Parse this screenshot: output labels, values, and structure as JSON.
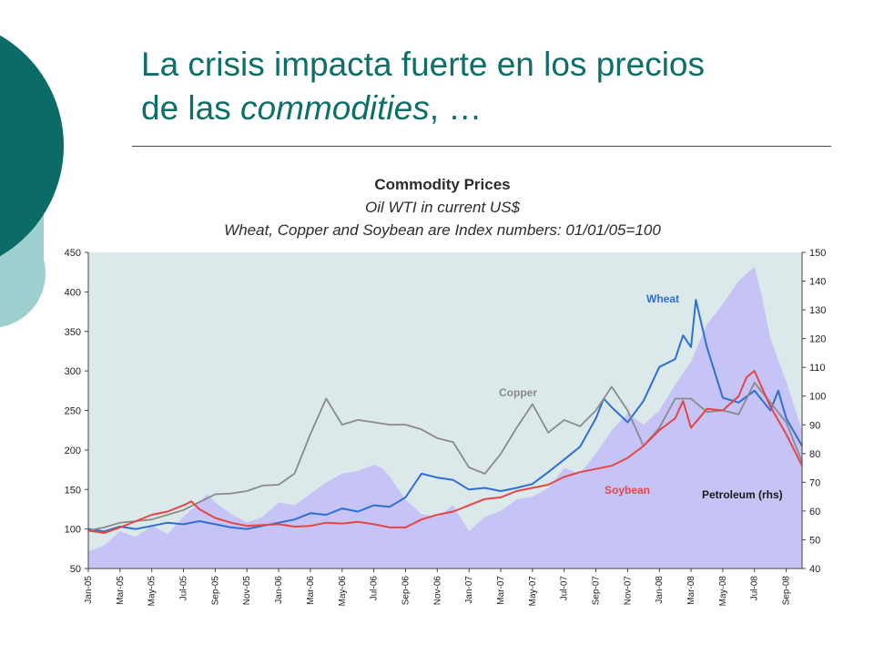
{
  "slide": {
    "title_line1": "La crisis impacta fuerte en los precios",
    "title_line2_prefix": "de las ",
    "title_line2_italic": "commodities",
    "title_line2_suffix": ", …"
  },
  "theme": {
    "title_color": "#0f6e68",
    "dark_teal": "#0b6b66",
    "light_teal": "#9ccfcd"
  },
  "chart_data": {
    "type": "line",
    "title": "Commodity Prices",
    "subtitle1": "Oil WTI in current US$",
    "subtitle2": "Wheat, Copper and Soybean are Index numbers: 01/01/05=100",
    "yleft": {
      "ticks": [
        450,
        400,
        350,
        300,
        250,
        200,
        150,
        100,
        50
      ],
      "lim": [
        50,
        450
      ]
    },
    "yright": {
      "ticks": [
        150,
        140,
        130,
        120,
        110,
        100,
        90,
        80,
        70,
        60,
        50,
        40
      ],
      "lim": [
        40,
        150
      ]
    },
    "x_ticks": [
      "Jan-05",
      "Mar-05",
      "May-05",
      "Jul-05",
      "Sep-05",
      "Nov-05",
      "Jan-06",
      "Mar-06",
      "May-06",
      "Jul-06",
      "Sep-06",
      "Nov-06",
      "Jan-07",
      "Mar-07",
      "May-07",
      "Jul-07",
      "Sep-07",
      "Nov-07",
      "Jan-08",
      "Mar-08",
      "May-08",
      "Jul-08",
      "Sep-08"
    ],
    "x_months": [
      0,
      2,
      4,
      6,
      8,
      10,
      12,
      14,
      16,
      18,
      20,
      22,
      24,
      26,
      28,
      30,
      32,
      34,
      36,
      38,
      40,
      42,
      44
    ],
    "x_range_months": [
      0,
      45
    ],
    "colors": {
      "petroleum": "#c6c3f7",
      "wheat": "#2f6fd3",
      "copper": "#8a8a8a",
      "soybean": "#e64545",
      "plot_bg": "#dce9ea"
    },
    "series": [
      {
        "name": "Petroleum (rhs)",
        "axis": "right",
        "x": [
          0,
          1,
          2,
          3,
          4,
          5,
          6,
          7,
          7.5,
          8,
          9,
          10,
          11,
          12,
          13,
          14,
          15,
          16,
          17,
          18,
          18.5,
          19,
          20,
          21,
          22,
          23,
          24,
          25,
          26,
          27,
          28,
          29,
          30,
          31,
          32,
          33,
          34,
          35,
          36,
          37,
          38,
          39,
          40,
          41,
          42,
          42.5,
          43,
          44,
          45
        ],
        "values": [
          46,
          48,
          53,
          51,
          55,
          52,
          58,
          63,
          66,
          63,
          59,
          56,
          58,
          63,
          62,
          66,
          70,
          73,
          74,
          76,
          75,
          72,
          64,
          59,
          58,
          62,
          53,
          58,
          60,
          64,
          65,
          68,
          75,
          73,
          80,
          88,
          94,
          90,
          95,
          104,
          112,
          125,
          132,
          140,
          145,
          134,
          120,
          105,
          88
        ]
      },
      {
        "name": "Wheat",
        "axis": "left",
        "x": [
          0,
          1,
          2,
          3,
          4,
          5,
          6,
          7,
          8,
          9,
          10,
          11,
          12,
          13,
          14,
          15,
          16,
          17,
          18,
          19,
          20,
          21,
          22,
          23,
          24,
          25,
          26,
          27,
          28,
          29,
          30,
          31,
          32,
          32.5,
          33,
          34,
          35,
          36,
          37,
          37.5,
          38,
          38.3,
          39,
          40,
          41,
          42,
          43,
          43.5,
          44,
          45
        ],
        "values": [
          100,
          97,
          103,
          100,
          104,
          108,
          106,
          110,
          106,
          102,
          100,
          104,
          108,
          112,
          120,
          118,
          126,
          122,
          130,
          128,
          140,
          170,
          165,
          162,
          150,
          152,
          148,
          152,
          157,
          172,
          188,
          204,
          240,
          265,
          254,
          235,
          262,
          305,
          315,
          345,
          330,
          390,
          330,
          266,
          260,
          275,
          250,
          275,
          240,
          205
        ]
      },
      {
        "name": "Copper",
        "axis": "left",
        "x": [
          0,
          1,
          2,
          3,
          4,
          5,
          6,
          7,
          8,
          9,
          10,
          11,
          12,
          13,
          14,
          15,
          16,
          17,
          18,
          19,
          20,
          21,
          22,
          23,
          24,
          25,
          26,
          27,
          28,
          29,
          30,
          31,
          32,
          33,
          34,
          35,
          36,
          37,
          38,
          39,
          40,
          41,
          42,
          43,
          44,
          45
        ],
        "values": [
          98,
          102,
          108,
          110,
          112,
          118,
          124,
          134,
          144,
          145,
          148,
          155,
          156,
          170,
          220,
          265,
          232,
          238,
          235,
          232,
          232,
          226,
          215,
          210,
          178,
          170,
          195,
          228,
          258,
          222,
          238,
          230,
          250,
          280,
          250,
          205,
          228,
          265,
          265,
          248,
          250,
          245,
          285,
          260,
          235,
          185
        ]
      },
      {
        "name": "Soybean",
        "axis": "left",
        "x": [
          0,
          1,
          2,
          3,
          4,
          5,
          6,
          6.5,
          7,
          8,
          9,
          10,
          11,
          12,
          13,
          14,
          15,
          16,
          17,
          18,
          19,
          20,
          21,
          22,
          23,
          24,
          25,
          26,
          27,
          28,
          29,
          30,
          31,
          32,
          33,
          34,
          35,
          36,
          37,
          37.5,
          38,
          39,
          40,
          41,
          41.5,
          42,
          43,
          44,
          45
        ],
        "values": [
          98,
          95,
          102,
          110,
          118,
          122,
          130,
          135,
          125,
          114,
          108,
          104,
          105,
          106,
          103,
          104,
          108,
          107,
          109,
          106,
          102,
          102,
          112,
          118,
          122,
          130,
          138,
          140,
          148,
          152,
          156,
          166,
          172,
          176,
          180,
          190,
          205,
          225,
          240,
          262,
          228,
          252,
          250,
          268,
          292,
          300,
          255,
          220,
          180
        ]
      }
    ],
    "labels": {
      "wheat": "Wheat",
      "copper": "Copper",
      "soybean": "Soybean",
      "petroleum": "Petroleum (rhs)"
    }
  }
}
